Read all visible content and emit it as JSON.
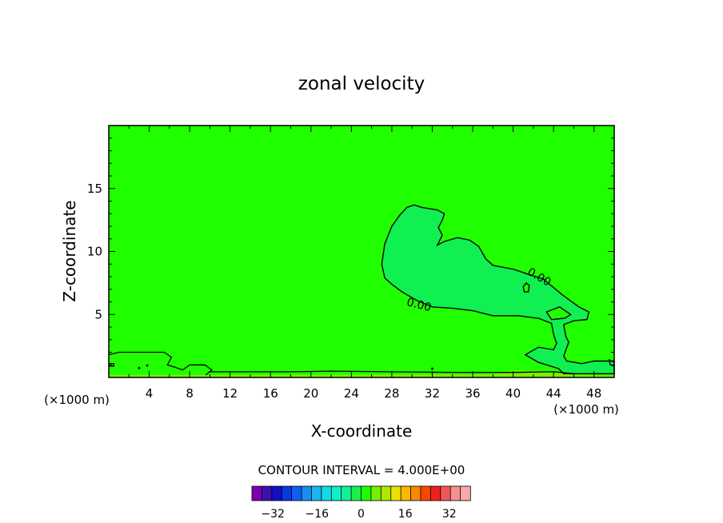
{
  "chart_data": {
    "type": "contour",
    "title": "zonal velocity",
    "xlabel": "X-coordinate",
    "ylabel": "Z-coordinate",
    "x_unit_left": "(×1000 m)",
    "x_unit_right": "(×1000 m)",
    "xlim": [
      0,
      50
    ],
    "ylim": [
      0,
      20
    ],
    "xticks": [
      4,
      8,
      12,
      16,
      20,
      24,
      28,
      32,
      36,
      40,
      44,
      48
    ],
    "yticks": [
      5,
      10,
      15
    ],
    "contour_interval_text": "CONTOUR INTERVAL = 4.000E+00",
    "contour_labels": [
      "0.00",
      "0.00"
    ],
    "colorbar": {
      "ticks": [
        -32,
        -16,
        0,
        16,
        32
      ],
      "tick_labels": [
        "−32",
        "−16",
        "0",
        "16",
        "32"
      ],
      "levels": [
        -36,
        -32,
        -28,
        -24,
        -20,
        -16,
        -12,
        -8,
        -4,
        0,
        4,
        8,
        12,
        16,
        20,
        24,
        28,
        32,
        36
      ],
      "colors": [
        "#7a00b0",
        "#3a10b0",
        "#1010c0",
        "#0838e0",
        "#1060f0",
        "#1a8ef0",
        "#18b6f0",
        "#10dce8",
        "#10f0c8",
        "#10f098",
        "#18f050",
        "#20ff00",
        "#78f000",
        "#b0e800",
        "#e8e000",
        "#f8b800",
        "#f88800",
        "#f84800",
        "#f02020",
        "#f05858",
        "#f89090",
        "#f8a8a8"
      ]
    },
    "fields": {
      "background_color": "#20ff00",
      "positive_region_color": "#10f050",
      "surface_band_color": "#78f000"
    },
    "grid": false
  }
}
